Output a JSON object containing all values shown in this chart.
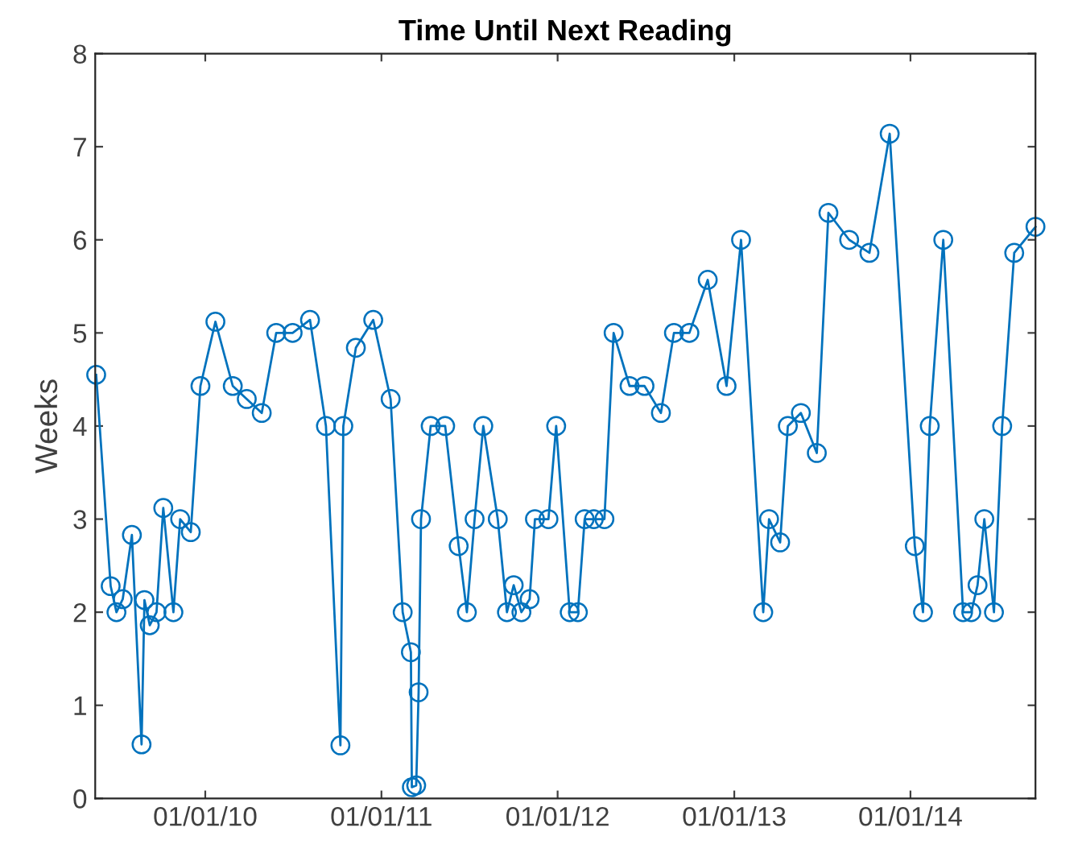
{
  "chart_data": {
    "type": "line",
    "title": "Time Until Next Reading",
    "ylabel": "Weeks",
    "x": [
      "2009-05-20",
      "2009-06-19",
      "2009-07-01",
      "2009-07-14",
      "2009-08-02",
      "2009-08-22",
      "2009-08-28",
      "2009-09-08",
      "2009-09-22",
      "2009-10-06",
      "2009-10-27",
      "2009-11-10",
      "2009-12-02",
      "2009-12-22",
      "2010-01-22",
      "2010-02-27",
      "2010-03-28",
      "2010-04-28",
      "2010-05-28",
      "2010-07-01",
      "2010-08-06",
      "2010-09-08",
      "2010-10-08",
      "2010-10-14",
      "2010-11-09",
      "2010-12-15",
      "2011-01-20",
      "2011-02-14",
      "2011-03-03",
      "2011-03-05",
      "2011-03-14",
      "2011-03-19",
      "2011-03-24",
      "2011-04-13",
      "2011-05-13",
      "2011-06-10",
      "2011-06-27",
      "2011-07-13",
      "2011-07-31",
      "2011-08-30",
      "2011-09-18",
      "2011-10-02",
      "2011-10-18",
      "2011-11-04",
      "2011-11-15",
      "2011-12-13",
      "2011-12-29",
      "2012-01-26",
      "2012-02-12",
      "2012-02-26",
      "2012-03-16",
      "2012-04-07",
      "2012-04-26",
      "2012-05-29",
      "2012-06-29",
      "2012-08-02",
      "2012-08-29",
      "2012-09-30",
      "2012-11-07",
      "2012-12-16",
      "2013-01-15",
      "2013-03-02",
      "2013-03-14",
      "2013-04-06",
      "2013-04-22",
      "2013-05-19",
      "2013-06-21",
      "2013-07-15",
      "2013-08-27",
      "2013-10-08",
      "2013-11-19",
      "2014-01-10",
      "2014-01-27",
      "2014-02-10",
      "2014-03-10",
      "2014-04-20",
      "2014-05-07",
      "2014-05-20",
      "2014-06-03",
      "2014-06-23",
      "2014-07-10",
      "2014-08-04",
      "2014-09-17"
    ],
    "series": [
      {
        "color": "#0072bd",
        "values": [
          4.55,
          2.28,
          2.0,
          2.14,
          2.83,
          0.58,
          2.13,
          1.86,
          2.0,
          3.12,
          2.0,
          3.0,
          2.86,
          4.43,
          5.12,
          4.43,
          4.29,
          4.14,
          5.0,
          5.0,
          5.14,
          4.0,
          0.57,
          4.0,
          4.84,
          5.14,
          4.29,
          2.0,
          1.57,
          0.12,
          0.14,
          1.14,
          3.0,
          4.0,
          4.0,
          2.71,
          2.0,
          3.0,
          4.0,
          3.0,
          2.0,
          2.29,
          2.0,
          2.14,
          3.0,
          3.0,
          4.0,
          2.0,
          2.0,
          3.0,
          3.0,
          3.0,
          5.0,
          4.43,
          4.43,
          4.14,
          5.0,
          5.0,
          5.57,
          4.43,
          6.0,
          2.0,
          3.0,
          2.75,
          4.0,
          4.14,
          3.71,
          6.29,
          6.0,
          5.86,
          7.14,
          2.71,
          2.0,
          4.0,
          6.0,
          2.0,
          2.0,
          2.29,
          3.0,
          2.0,
          4.0,
          5.86,
          6.14
        ]
      }
    ],
    "xlim": [
      "2009-05-18",
      "2014-09-17"
    ],
    "xticks": [
      {
        "value": "2010-01-01",
        "label": "01/01/10"
      },
      {
        "value": "2011-01-01",
        "label": "01/01/11"
      },
      {
        "value": "2012-01-01",
        "label": "01/01/12"
      },
      {
        "value": "2013-01-01",
        "label": "01/01/13"
      },
      {
        "value": "2014-01-01",
        "label": "01/01/14"
      }
    ],
    "ylim": [
      0,
      8
    ],
    "yticks": [
      0,
      1,
      2,
      3,
      4,
      5,
      6,
      7,
      8
    ],
    "marker": "circle",
    "line_style": "solid",
    "grid": false,
    "legend": false
  }
}
